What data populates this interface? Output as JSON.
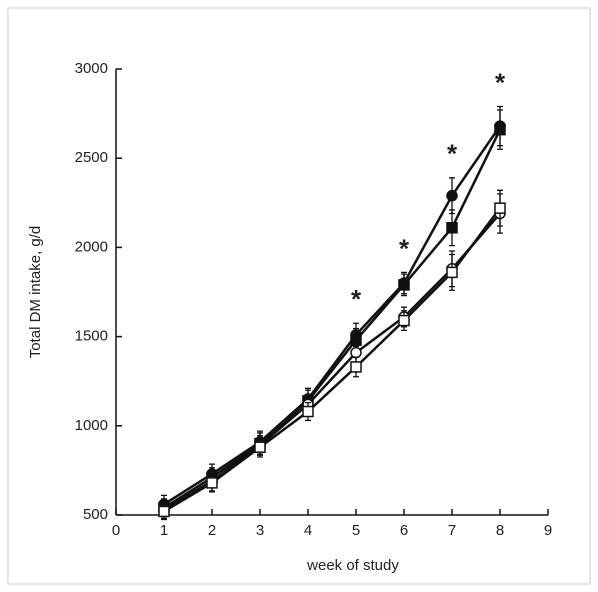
{
  "chart_data": {
    "type": "line",
    "x_label": "week of study",
    "y_label": "Total DM intake, g/d",
    "x": [
      1,
      2,
      3,
      4,
      5,
      6,
      7,
      8
    ],
    "xlim": [
      0,
      9
    ],
    "xticks": [
      0,
      1,
      2,
      3,
      4,
      5,
      6,
      7,
      8,
      9
    ],
    "ylim": [
      500,
      3000
    ],
    "yticks": [
      500,
      1000,
      1500,
      2000,
      2500,
      3000
    ],
    "series": [
      {
        "marker": "filled-circle",
        "color": "#111111",
        "values": [
          560,
          730,
          910,
          1150,
          1510,
          1800,
          2290,
          2680
        ],
        "errors": [
          50,
          55,
          60,
          60,
          65,
          60,
          100,
          110
        ]
      },
      {
        "marker": "filled-square",
        "color": "#111111",
        "values": [
          540,
          710,
          900,
          1140,
          1480,
          1790,
          2110,
          2660
        ],
        "errors": [
          50,
          55,
          60,
          60,
          65,
          60,
          100,
          110
        ]
      },
      {
        "marker": "open-circle",
        "color": "#111111",
        "values": [
          530,
          690,
          890,
          1120,
          1410,
          1610,
          1880,
          2190
        ],
        "errors": [
          50,
          55,
          55,
          55,
          60,
          55,
          100,
          110
        ]
      },
      {
        "marker": "open-square",
        "color": "#111111",
        "values": [
          520,
          680,
          880,
          1080,
          1330,
          1590,
          1860,
          2220
        ],
        "errors": [
          45,
          50,
          55,
          50,
          55,
          55,
          100,
          100
        ]
      }
    ],
    "annotations": [
      {
        "x": 5,
        "text": "*"
      },
      {
        "x": 6,
        "text": "*"
      },
      {
        "x": 7,
        "text": "*"
      },
      {
        "x": 8,
        "text": "*"
      }
    ]
  }
}
